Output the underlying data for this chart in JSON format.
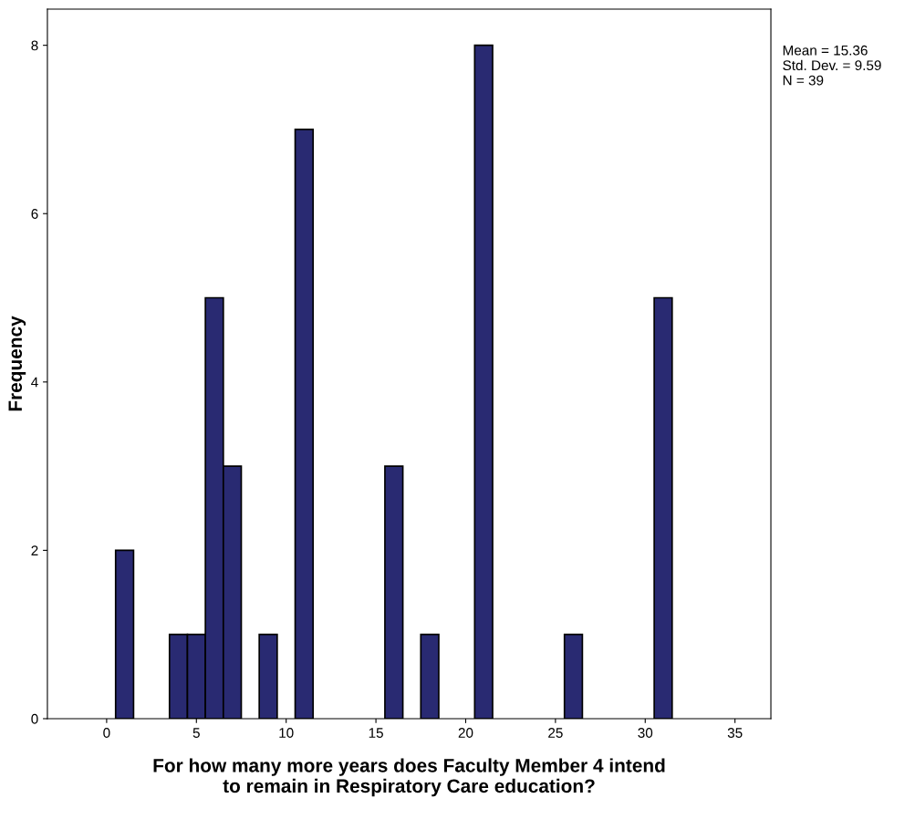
{
  "chart_data": {
    "type": "histogram",
    "xlabel": "For how many more years does Faculty Member 4 intend\nto remain in Respiratory Care education?",
    "ylabel": "Frequency",
    "bins": [
      0.5,
      1.5,
      2.5,
      3.5,
      4.5,
      5.5,
      6.5,
      7.5,
      8.5,
      9.5,
      10.5,
      11.5,
      12.5,
      13.5,
      14.5,
      15.5,
      16.5,
      17.5,
      18.5,
      19.5,
      20.5,
      21.5,
      22.5,
      23.5,
      24.5,
      25.5,
      26.5,
      27.5,
      28.5,
      29.5,
      30.5,
      31.5
    ],
    "values": [
      2,
      0,
      0,
      1,
      1,
      5,
      3,
      0,
      1,
      0,
      7,
      0,
      0,
      0,
      0,
      3,
      0,
      1,
      0,
      0,
      8,
      0,
      0,
      0,
      0,
      1,
      0,
      0,
      0,
      0,
      5
    ],
    "color": "#292a72",
    "xlim": [
      -3.3,
      37
    ],
    "ylim": [
      0,
      8.43
    ],
    "xticks": [
      0,
      5,
      10,
      15,
      20,
      25,
      30,
      35
    ],
    "yticks": [
      0,
      2,
      4,
      6,
      8
    ],
    "grid": false,
    "legend": false,
    "annotations": [
      "Mean = 15.36\nStd. Dev. = 9.59\nN = 39"
    ]
  }
}
